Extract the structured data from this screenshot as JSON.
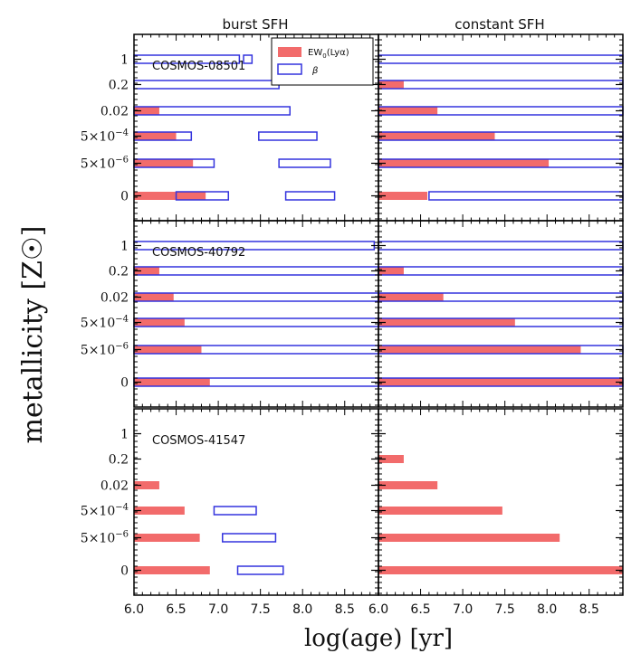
{
  "chart_data": {
    "type": "bar",
    "column_titles": [
      "burst SFH",
      "constant SFH"
    ],
    "xlabel": "log(age) [yr]",
    "ylabel": "metallicity [Z☉]",
    "xlim": [
      6.0,
      8.9
    ],
    "x_ticks": [
      "6.0",
      "6.5",
      "7.0",
      "7.5",
      "8.0",
      "8.5"
    ],
    "y_levels": [
      {
        "label": "0",
        "base": "0",
        "exp": ""
      },
      {
        "label": "5×10⁻⁶",
        "base": "5×10",
        "exp": "−6"
      },
      {
        "label": "5×10⁻⁴",
        "base": "5×10",
        "exp": "−4"
      },
      {
        "label": "0.02",
        "base": "0.02",
        "exp": ""
      },
      {
        "label": "0.2",
        "base": "0.2",
        "exp": ""
      },
      {
        "label": "1",
        "base": "1",
        "exp": ""
      }
    ],
    "legend": {
      "ew": {
        "label_main": "EW",
        "label_sub": "0",
        "label_tail": "(Lyα)",
        "color": "#f26b6b"
      },
      "beta": {
        "label": "β",
        "color": "#3333dd"
      }
    },
    "panels": [
      {
        "name": "COSMOS-08501",
        "burst": {
          "ew": [
            [
              6.0,
              6.85
            ],
            [
              6.0,
              6.7
            ],
            [
              6.0,
              6.5
            ],
            [
              6.0,
              6.3
            ],
            null,
            null
          ],
          "beta": [
            [
              [
                6.5,
                7.12
              ],
              [
                7.8,
                8.38
              ]
            ],
            [
              [
                6.0,
                6.95
              ],
              [
                7.72,
                8.33
              ]
            ],
            [
              [
                6.0,
                6.68
              ],
              [
                7.48,
                8.17
              ]
            ],
            [
              [
                6.0,
                7.85
              ]
            ],
            [
              [
                6.0,
                7.72
              ]
            ],
            [
              [
                6.0,
                7.25
              ],
              [
                7.3,
                7.4
              ]
            ]
          ]
        },
        "constant": {
          "ew": [
            [
              6.0,
              6.58
            ],
            [
              6.0,
              8.02
            ],
            [
              6.0,
              7.38
            ],
            [
              6.0,
              6.7
            ],
            [
              6.0,
              6.3
            ],
            null
          ],
          "beta": [
            [
              [
                6.6,
                8.9
              ]
            ],
            [
              [
                6.0,
                8.9
              ]
            ],
            [
              [
                6.0,
                8.9
              ]
            ],
            [
              [
                6.0,
                8.9
              ]
            ],
            [
              [
                6.0,
                8.9
              ]
            ],
            [
              [
                6.0,
                8.9
              ]
            ]
          ]
        }
      },
      {
        "name": "COSMOS-40792",
        "burst": {
          "ew": [
            [
              6.0,
              6.9
            ],
            [
              6.0,
              6.8
            ],
            [
              6.0,
              6.6
            ],
            [
              6.0,
              6.47
            ],
            [
              6.0,
              6.3
            ],
            null
          ],
          "beta": [
            [
              [
                6.0,
                8.9
              ]
            ],
            [
              [
                6.0,
                8.9
              ]
            ],
            [
              [
                6.0,
                8.9
              ]
            ],
            [
              [
                6.0,
                8.9
              ]
            ],
            [
              [
                6.0,
                8.9
              ]
            ],
            [
              [
                6.0,
                8.85
              ]
            ]
          ]
        },
        "constant": {
          "ew": [
            [
              6.0,
              8.9
            ],
            [
              6.0,
              8.4
            ],
            [
              6.0,
              7.62
            ],
            [
              6.0,
              6.77
            ],
            [
              6.0,
              6.3
            ],
            null
          ],
          "beta": [
            [
              [
                6.0,
                8.9
              ]
            ],
            [
              [
                6.0,
                8.9
              ]
            ],
            [
              [
                6.0,
                8.9
              ]
            ],
            [
              [
                6.0,
                8.9
              ]
            ],
            [
              [
                6.0,
                8.9
              ]
            ],
            [
              [
                6.0,
                8.9
              ]
            ]
          ]
        }
      },
      {
        "name": "COSMOS-41547",
        "burst": {
          "ew": [
            [
              6.0,
              6.9
            ],
            [
              6.0,
              6.78
            ],
            [
              6.0,
              6.6
            ],
            [
              6.0,
              6.3
            ],
            null,
            null
          ],
          "beta": [
            [
              [
                7.23,
                7.77
              ]
            ],
            [
              [
                7.05,
                7.68
              ]
            ],
            [
              [
                6.95,
                7.45
              ]
            ],
            null,
            null,
            null
          ]
        },
        "constant": {
          "ew": [
            [
              6.0,
              8.9
            ],
            [
              6.0,
              8.15
            ],
            [
              6.0,
              7.47
            ],
            [
              6.0,
              6.7
            ],
            [
              6.0,
              6.3
            ],
            null
          ],
          "beta": [
            null,
            null,
            null,
            null,
            null,
            null
          ]
        }
      }
    ]
  }
}
